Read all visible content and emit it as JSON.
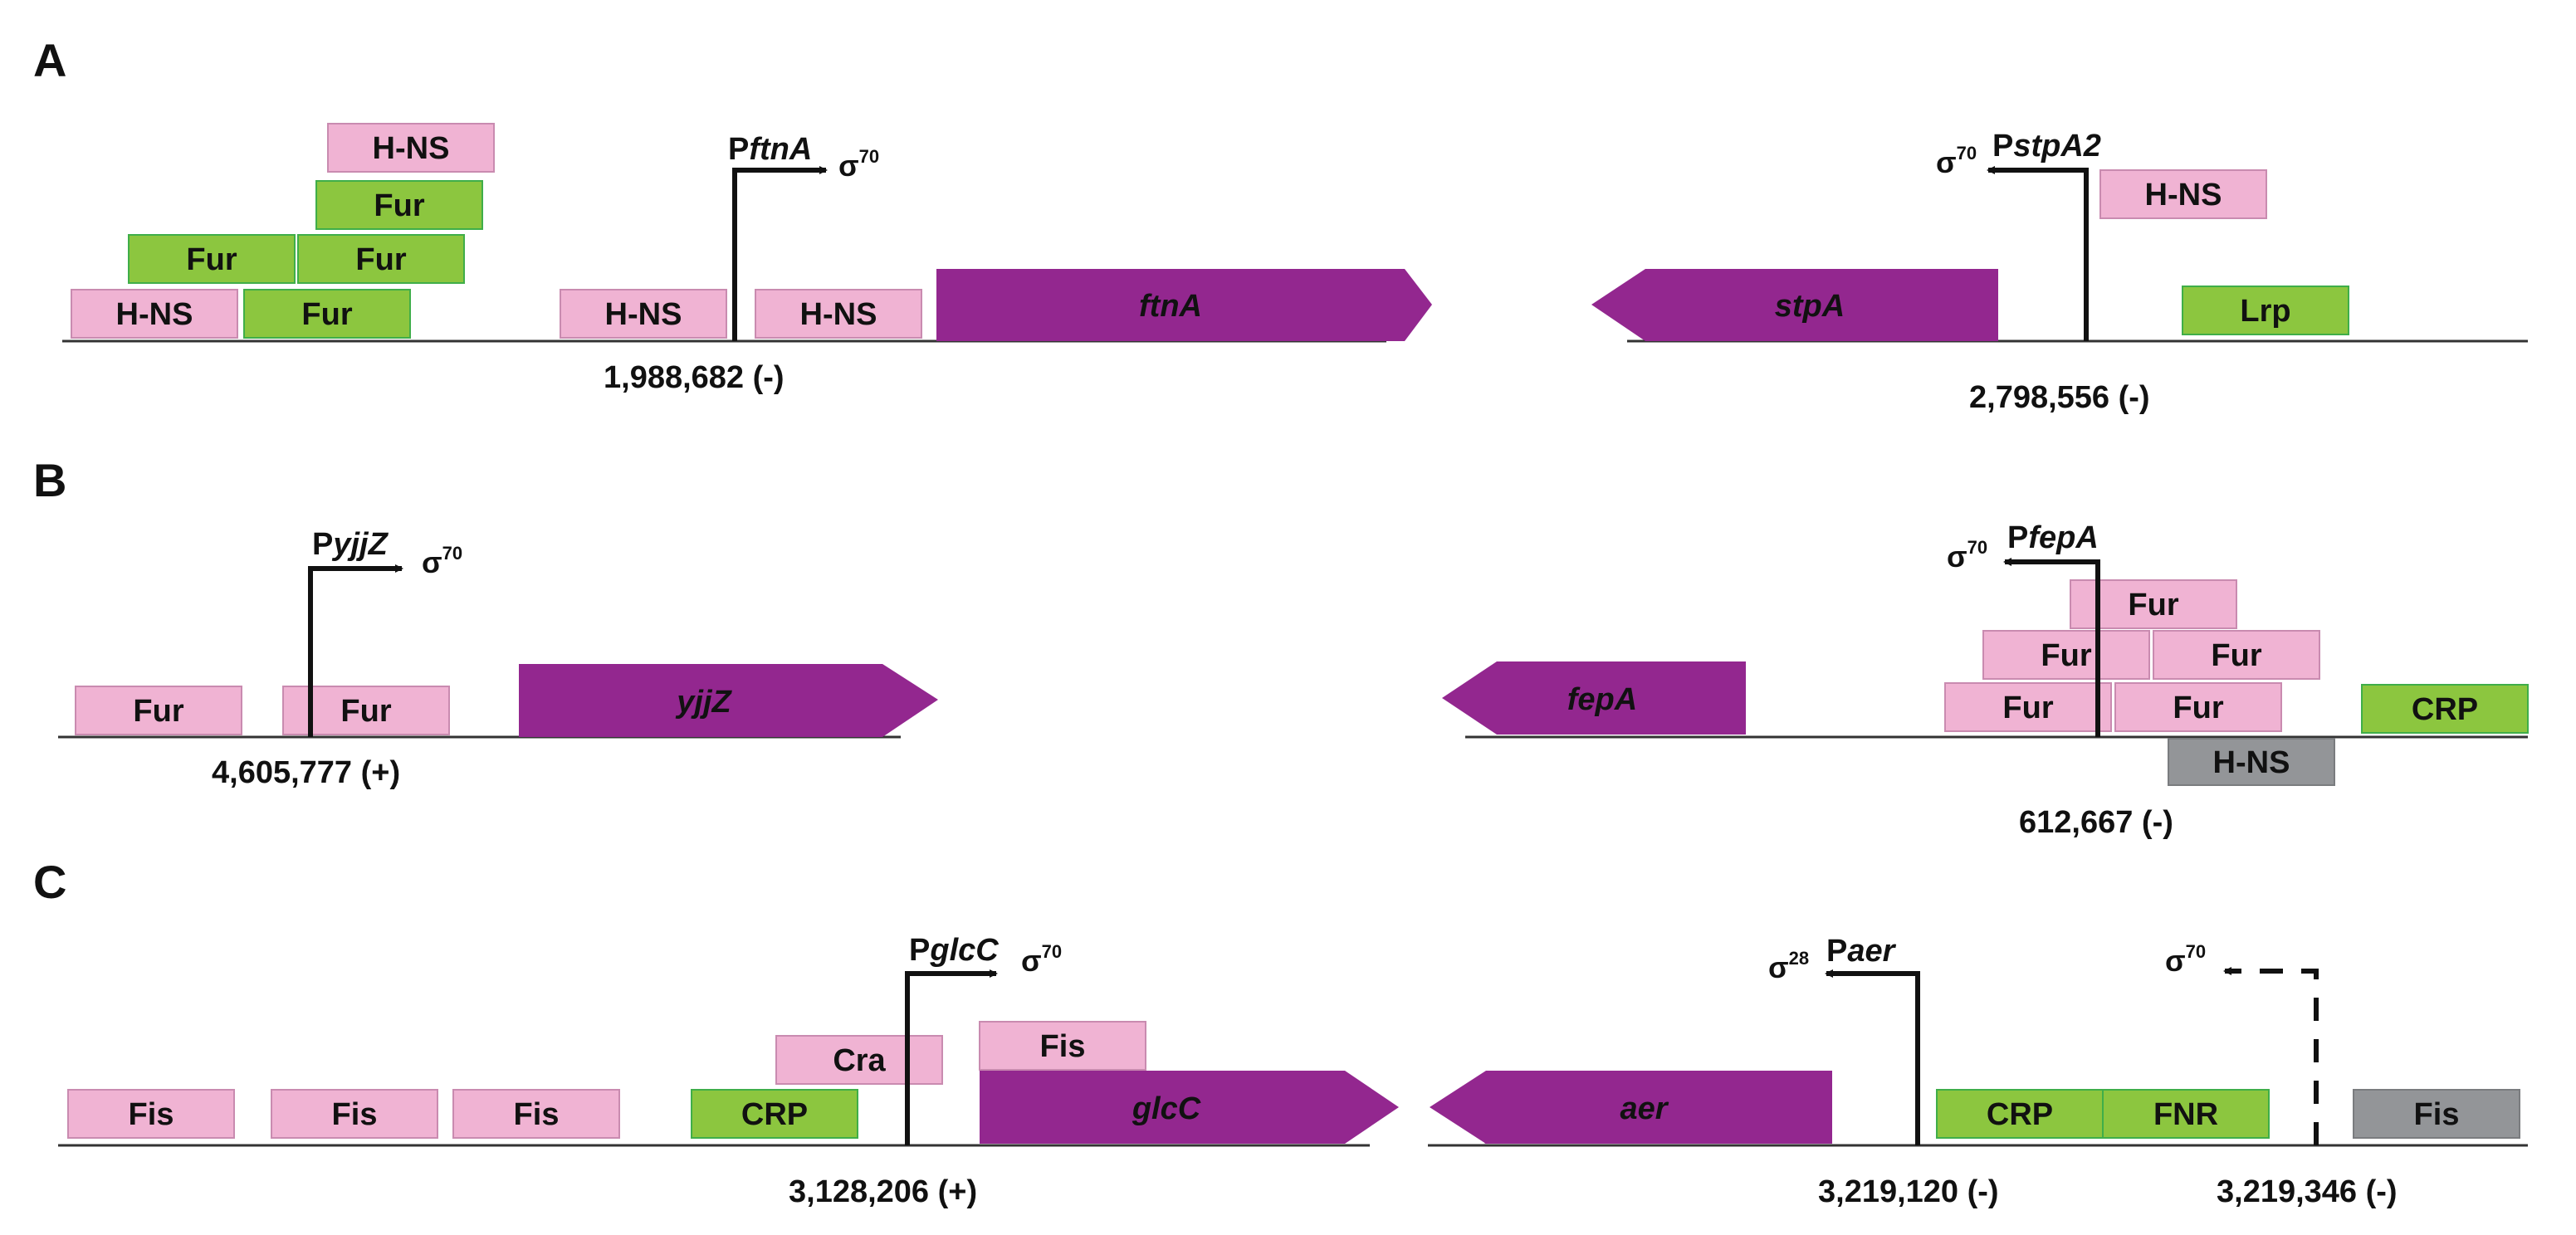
{
  "panels": {
    "a": "A",
    "b": "B",
    "c": "C"
  },
  "factor_colors": {
    "pink": "#f0b3d3",
    "green": "#8cc63f",
    "green_border": "#3fae49",
    "grey": "#939598",
    "gene": "#93278f"
  },
  "sigma": {
    "s70": "σ",
    "s70_sup": "70",
    "s28": "σ",
    "s28_sup": "28"
  },
  "promoters": {
    "ftnA": {
      "p": "P",
      "name": "ftnA"
    },
    "stpA2": {
      "p": "P",
      "name": "stpA2"
    },
    "yjjZ": {
      "p": "P",
      "name": "yjjZ"
    },
    "fepA": {
      "p": "P",
      "name": "fepA"
    },
    "glcC": {
      "p": "P",
      "name": "glcC"
    },
    "aer": {
      "p": "P",
      "name": "aer"
    }
  },
  "genes": {
    "ftnA": "ftnA",
    "stpA": "stpA",
    "yjjZ": "yjjZ",
    "fepA": "fepA",
    "glcC": "glcC",
    "aer": "aer"
  },
  "coordinates": {
    "ftnA": "1,988,682  (-)",
    "stpA": "2,798,556  (-)",
    "yjjZ": "4,605,777 (+)",
    "fepA": "612,667 (-)",
    "glcC": "3,128,206 (+)",
    "aer": "3,219,120  (-)",
    "aer2": "3,219,346  (-)"
  },
  "factors": {
    "hns": "H-NS",
    "fur": "Fur",
    "lrp": "Lrp",
    "crp": "CRP",
    "fis": "Fis",
    "cra": "Cra",
    "fnr": "FNR"
  }
}
